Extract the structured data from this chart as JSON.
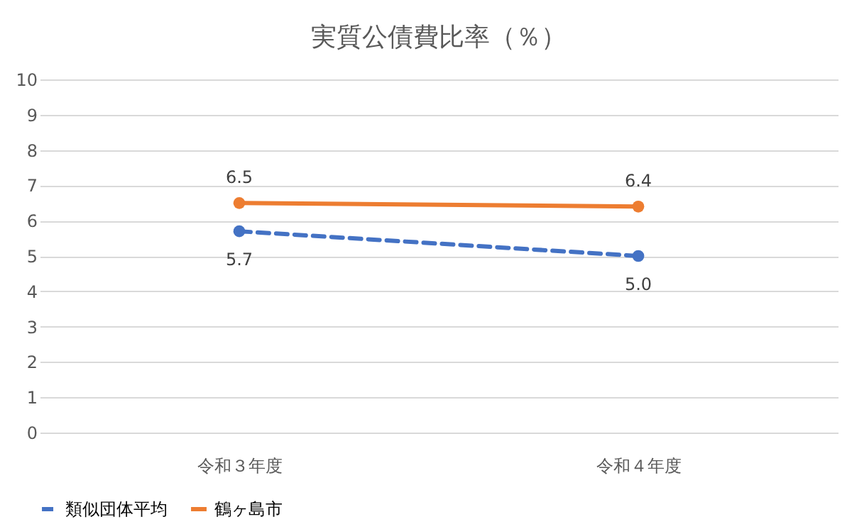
{
  "chart_data": {
    "type": "line",
    "title": "実質公債費比率（％）",
    "categories": [
      "令和３年度",
      "令和４年度"
    ],
    "series": [
      {
        "name": "類似団体平均",
        "color": "#4472c4",
        "values": [
          5.7,
          5.0
        ],
        "value_labels": [
          "5.7",
          "5.0"
        ],
        "line_style": "dashed"
      },
      {
        "name": "鶴ヶ島市",
        "color": "#ed7d31",
        "values": [
          6.5,
          6.4
        ],
        "value_labels": [
          "6.5",
          "6.4"
        ],
        "line_style": "solid"
      }
    ],
    "ylim": [
      0,
      10
    ],
    "yticks": [
      0,
      1,
      2,
      3,
      4,
      5,
      6,
      7,
      8,
      9,
      10
    ],
    "grid": "y",
    "legend": "bottom",
    "marker": "circle"
  }
}
